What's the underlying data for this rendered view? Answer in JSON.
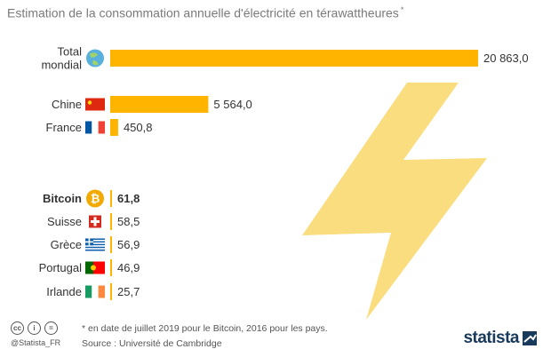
{
  "title": "Estimation de la consommation annuelle d'électricité en térawattheures",
  "title_marker": "*",
  "colors": {
    "bar": "#ffb400",
    "bolt": "#f7d254",
    "text": "#333333",
    "muted": "#7a7a7a",
    "brand": "#1a3a5c"
  },
  "chart_data": {
    "type": "bar",
    "orientation": "horizontal",
    "categories": [
      "Total mondial",
      "Chine",
      "France",
      "Bitcoin",
      "Suisse",
      "Grèce",
      "Portugal",
      "Irlande"
    ],
    "category_lines": [
      [
        "Total",
        "mondial"
      ],
      [
        "Chine"
      ],
      [
        "France"
      ],
      [
        "Bitcoin"
      ],
      [
        "Suisse"
      ],
      [
        "Grèce"
      ],
      [
        "Portugal"
      ],
      [
        "Irlande"
      ]
    ],
    "values": [
      20863.0,
      5564.0,
      450.8,
      61.8,
      58.5,
      56.9,
      46.9,
      25.7
    ],
    "value_labels": [
      "20 863,0",
      "5 564,0",
      "450,8",
      "61,8",
      "58,5",
      "56,9",
      "46,9",
      "25,7"
    ],
    "icons": [
      "globe-icon",
      "flag-china-icon",
      "flag-france-icon",
      "bitcoin-icon",
      "flag-switzerland-icon",
      "flag-greece-icon",
      "flag-portugal-icon",
      "flag-ireland-icon"
    ],
    "bold": [
      false,
      false,
      false,
      true,
      false,
      false,
      false,
      false
    ],
    "xlim": [
      0,
      20863.0
    ]
  },
  "footer": {
    "handle": "@Statista_FR",
    "note": "* en date de juillet 2019 pour le Bitcoin, 2016 pour les pays.",
    "source": "Source : Université de Cambridge",
    "logo": "statista"
  }
}
